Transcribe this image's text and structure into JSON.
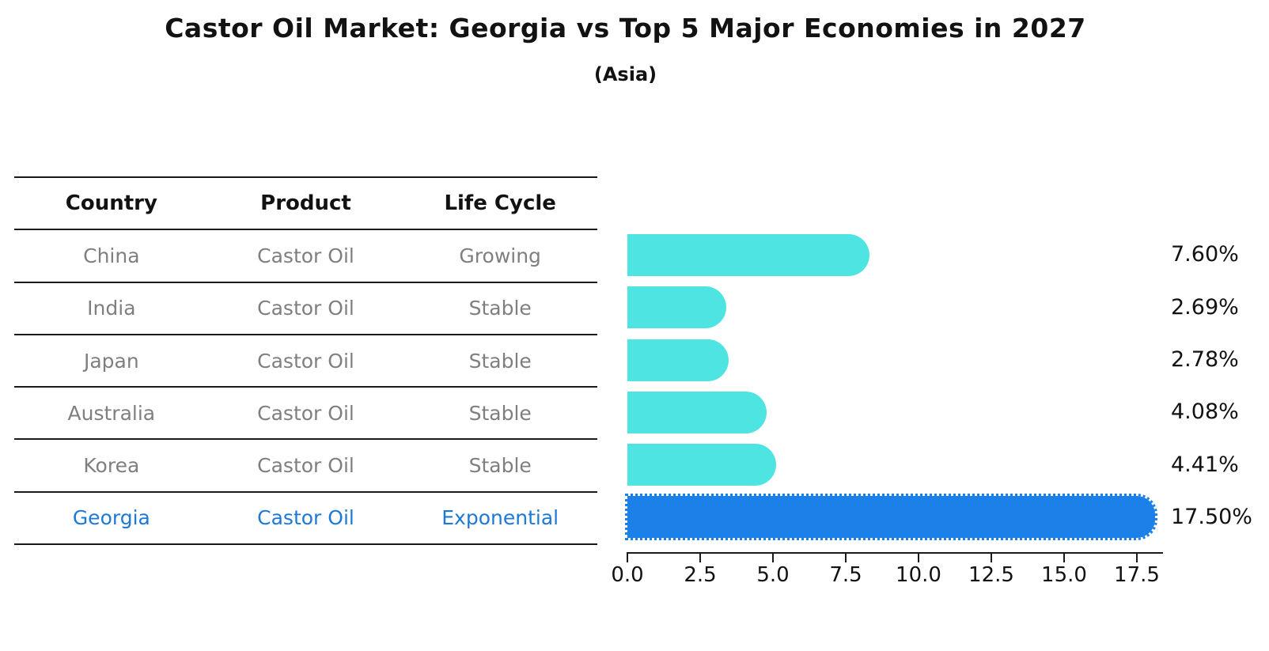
{
  "title": "Castor Oil Market: Georgia vs Top 5 Major Economies in 2027",
  "subtitle": "(Asia)",
  "table": {
    "headers": [
      "Country",
      "Product",
      "Life Cycle"
    ],
    "rows": [
      {
        "country": "China",
        "product": "Castor Oil",
        "life_cycle": "Growing",
        "highlight": false
      },
      {
        "country": "India",
        "product": "Castor Oil",
        "life_cycle": "Stable",
        "highlight": false
      },
      {
        "country": "Japan",
        "product": "Castor Oil",
        "life_cycle": "Stable",
        "highlight": false
      },
      {
        "country": "Australia",
        "product": "Castor Oil",
        "life_cycle": "Stable",
        "highlight": false
      },
      {
        "country": "Korea",
        "product": "Castor Oil",
        "life_cycle": "Stable",
        "highlight": false
      },
      {
        "country": "Georgia",
        "product": "Castor Oil",
        "life_cycle": "Exponential",
        "highlight": true
      }
    ]
  },
  "chart_data": {
    "type": "bar",
    "orientation": "horizontal",
    "title": "Castor Oil Market: Georgia vs Top 5 Major Economies in 2027",
    "subtitle": "(Asia)",
    "categories": [
      "China",
      "India",
      "Japan",
      "Australia",
      "Korea",
      "Georgia"
    ],
    "values": [
      7.6,
      2.69,
      2.78,
      4.08,
      4.41,
      17.5
    ],
    "value_labels": [
      "7.60%",
      "2.69%",
      "2.78%",
      "4.08%",
      "4.41%",
      "17.50%"
    ],
    "x_ticks": [
      "0.0",
      "2.5",
      "5.0",
      "7.5",
      "10.0",
      "12.5",
      "15.0",
      "17.5"
    ],
    "xlim": [
      0,
      18.4
    ],
    "grid": false,
    "legend": "none",
    "highlight_index": 5,
    "bar_color": "#4de4e2",
    "highlight_color": "#1b80e8",
    "highlight_border_style": "dotted"
  },
  "colors": {
    "text_primary": "#121212",
    "text_muted": "#7f7f7f",
    "text_highlight": "#1e79d6",
    "table_line": "#1a1a1a"
  }
}
